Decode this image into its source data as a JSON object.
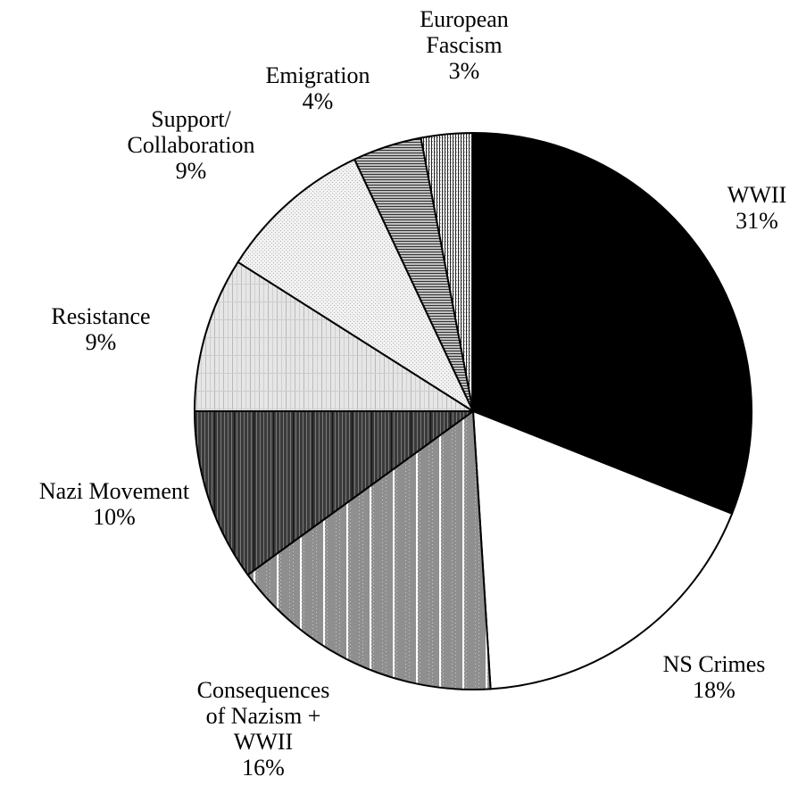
{
  "chart_data": {
    "type": "pie",
    "title": "",
    "slices": [
      {
        "label": [
          "WWII"
        ],
        "pct_label": "31%",
        "value": 31,
        "fill": "solid-black"
      },
      {
        "label": [
          "NS Crimes"
        ],
        "pct_label": "18%",
        "value": 18,
        "fill": "white"
      },
      {
        "label": [
          "Consequences",
          "of Nazism +",
          "WWII"
        ],
        "pct_label": "16%",
        "value": 16,
        "fill": "gray-dotted-vertical-stripes"
      },
      {
        "label": [
          "Nazi Movement"
        ],
        "pct_label": "10%",
        "value": 10,
        "fill": "dark-gray-vertical-stripes"
      },
      {
        "label": [
          "Resistance"
        ],
        "pct_label": "9%",
        "value": 9,
        "fill": "light-gray-stripes"
      },
      {
        "label": [
          "Support/",
          "Collaboration"
        ],
        "pct_label": "9%",
        "value": 9,
        "fill": "very-light-dotted"
      },
      {
        "label": [
          "Emigration"
        ],
        "pct_label": "4%",
        "value": 4,
        "fill": "horizontal-lines"
      },
      {
        "label": [
          "European",
          "Fascism"
        ],
        "pct_label": "3%",
        "value": 3,
        "fill": "dense-vertical-lines"
      }
    ],
    "start_angle": "12 o'clock",
    "direction": "clockwise",
    "legend": "none (labels placed next to slices)"
  }
}
